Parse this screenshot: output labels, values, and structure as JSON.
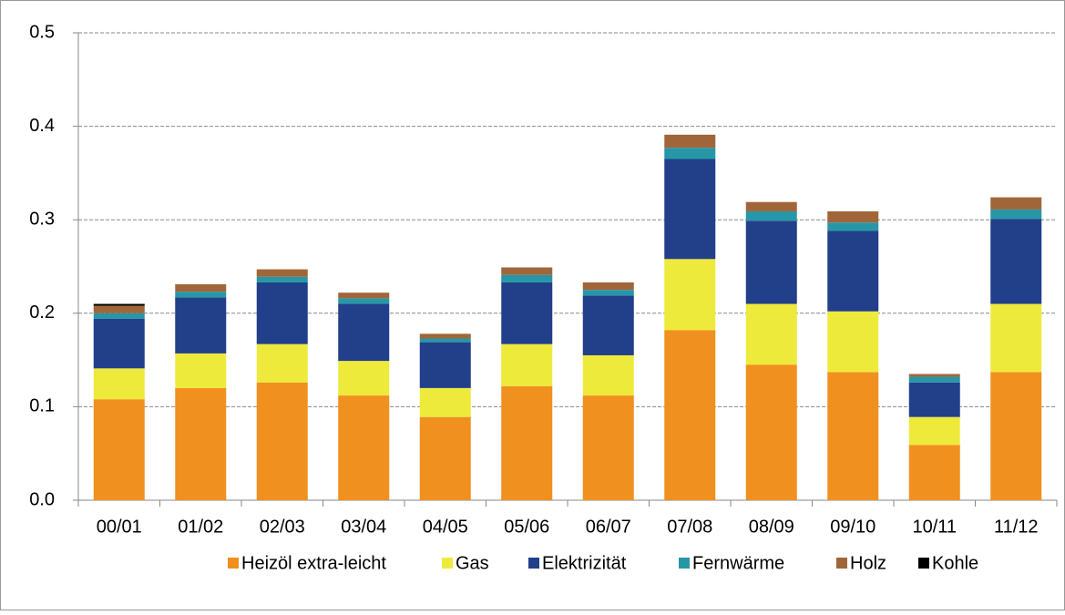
{
  "chart_data": {
    "type": "stacked_bar",
    "categories": [
      "00/01",
      "01/02",
      "02/03",
      "03/04",
      "04/05",
      "05/06",
      "06/07",
      "07/08",
      "08/09",
      "09/10",
      "10/11",
      "11/12"
    ],
    "series": [
      {
        "name": "Heizöl extra-leicht",
        "color": "#f0901e",
        "values": [
          0.108,
          0.12,
          0.126,
          0.112,
          0.089,
          0.122,
          0.112,
          0.182,
          0.145,
          0.137,
          0.059,
          0.137
        ]
      },
      {
        "name": "Gas",
        "color": "#eeea3c",
        "values": [
          0.033,
          0.037,
          0.041,
          0.037,
          0.031,
          0.045,
          0.043,
          0.076,
          0.065,
          0.065,
          0.03,
          0.073
        ]
      },
      {
        "name": "Elektrizität",
        "color": "#223f8a",
        "values": [
          0.053,
          0.06,
          0.066,
          0.061,
          0.049,
          0.066,
          0.064,
          0.107,
          0.089,
          0.086,
          0.037,
          0.091
        ]
      },
      {
        "name": "Fernwärme",
        "color": "#2797a8",
        "values": [
          0.006,
          0.006,
          0.006,
          0.006,
          0.004,
          0.008,
          0.006,
          0.012,
          0.01,
          0.009,
          0.006,
          0.01
        ]
      },
      {
        "name": "Holz",
        "color": "#a0663a",
        "values": [
          0.008,
          0.008,
          0.008,
          0.006,
          0.005,
          0.008,
          0.008,
          0.014,
          0.01,
          0.012,
          0.003,
          0.013
        ]
      },
      {
        "name": "Kohle",
        "color": "#000000",
        "values": [
          0.002,
          0,
          0,
          0,
          0,
          0,
          0,
          0,
          0,
          0,
          0,
          0
        ]
      }
    ],
    "ylim": [
      0,
      0.5
    ],
    "yticks": [
      {
        "value": 0,
        "label": "0.0"
      },
      0.1,
      0.2,
      0.3,
      0.4,
      0.5
    ],
    "grid": true,
    "legend": "bottom"
  }
}
